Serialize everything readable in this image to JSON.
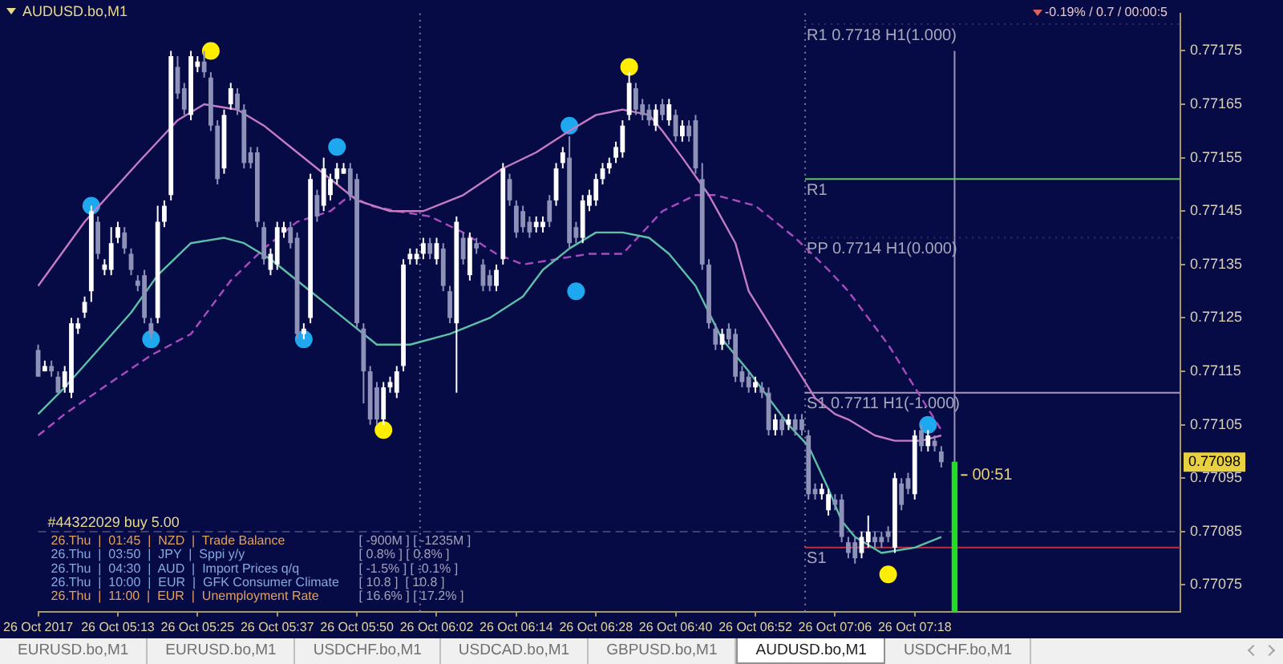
{
  "chart_data": {
    "type": "candlestick",
    "title": "AUDUSD.bo,M1",
    "subtitle": "-0.19% / 0.7 / 00:00:5",
    "categories": [
      "26 Oct 2017",
      null,
      null,
      null,
      null,
      null,
      null,
      null,
      null,
      null,
      null,
      null,
      "26 Oct 05:13",
      null,
      null,
      null,
      null,
      null,
      null,
      null,
      null,
      null,
      null,
      null,
      "26 Oct 05:25",
      null,
      null,
      null,
      null,
      null,
      null,
      null,
      null,
      null,
      null,
      null,
      "26 Oct 05:37",
      null,
      null,
      null,
      null,
      null,
      null,
      null,
      null,
      null,
      null,
      null,
      "26 Oct 05:50",
      null,
      null,
      null,
      null,
      null,
      null,
      null,
      null,
      null,
      null,
      null,
      "26 Oct 06:02",
      null,
      null,
      null,
      null,
      null,
      null,
      null,
      null,
      null,
      null,
      null,
      "26 Oct 06:14",
      null,
      null,
      null,
      null,
      null,
      null,
      null,
      null,
      null,
      null,
      null,
      "26 Oct 06:28",
      null,
      null,
      null,
      null,
      null,
      null,
      null,
      null,
      null,
      null,
      null,
      "26 Oct 06:40",
      null,
      null,
      null,
      null,
      null,
      null,
      null,
      null,
      null,
      null,
      null,
      "26 Oct 06:52",
      null,
      null,
      null,
      null,
      null,
      null,
      null,
      null,
      null,
      null,
      null,
      "26 Oct 07:06",
      null,
      null,
      null,
      null,
      null,
      null,
      null,
      null,
      null,
      null,
      null,
      "26 Oct 07:18",
      null,
      null,
      null,
      null,
      null,
      null,
      null,
      null,
      null,
      null,
      null,
      null,
      null,
      null,
      null,
      null,
      null,
      null,
      null,
      null,
      null,
      null,
      null,
      null,
      null,
      null,
      null,
      null,
      null,
      null,
      null,
      null,
      null,
      null,
      null,
      null,
      null,
      null,
      null,
      null
    ],
    "ohlc": [
      [
        0.77119,
        0.7712,
        0.77114,
        0.77114
      ],
      [
        0.77115,
        0.77117,
        0.77115,
        0.77116
      ],
      [
        0.77116,
        0.77117,
        0.77114,
        0.77115
      ],
      [
        0.77114,
        0.77115,
        0.77111,
        0.77111
      ],
      [
        0.77112,
        0.77116,
        0.77111,
        0.77115
      ],
      [
        0.77111,
        0.77125,
        0.7711,
        0.77124
      ],
      [
        0.77123,
        0.77125,
        0.77122,
        0.77124
      ],
      [
        0.77126,
        0.77129,
        0.77125,
        0.77128
      ],
      [
        0.7713,
        0.77146,
        0.77128,
        0.77145
      ],
      [
        0.77143,
        0.77144,
        0.77136,
        0.77137
      ],
      [
        0.77134,
        0.77136,
        0.77133,
        0.77135
      ],
      [
        0.77134,
        0.77142,
        0.77133,
        0.77139
      ],
      [
        0.7714,
        0.77143,
        0.77139,
        0.77142
      ],
      [
        0.77141,
        0.77142,
        0.77137,
        0.77138
      ],
      [
        0.77137,
        0.77138,
        0.77133,
        0.77134
      ],
      [
        0.77132,
        0.77133,
        0.7713,
        0.77131
      ],
      [
        0.77133,
        0.77134,
        0.77124,
        0.77125
      ],
      [
        0.77124,
        0.77125,
        0.77121,
        0.77122
      ],
      [
        0.77125,
        0.77146,
        0.77124,
        0.77143
      ],
      [
        0.77143,
        0.77147,
        0.77142,
        0.77146
      ],
      [
        0.77148,
        0.77175,
        0.77147,
        0.77174
      ],
      [
        0.77172,
        0.77174,
        0.77166,
        0.77167
      ],
      [
        0.77168,
        0.77169,
        0.77163,
        0.77164
      ],
      [
        0.77163,
        0.77175,
        0.77162,
        0.77174
      ],
      [
        0.77172,
        0.77174,
        0.77171,
        0.77173
      ],
      [
        0.77173,
        0.77175,
        0.7717,
        0.77171
      ],
      [
        0.7717,
        0.77171,
        0.7716,
        0.77161
      ],
      [
        0.77161,
        0.77162,
        0.7715,
        0.77151
      ],
      [
        0.77153,
        0.77164,
        0.77152,
        0.77163
      ],
      [
        0.77165,
        0.77169,
        0.77164,
        0.77168
      ],
      [
        0.77167,
        0.77168,
        0.77163,
        0.77164
      ],
      [
        0.77164,
        0.77165,
        0.77153,
        0.77154
      ],
      [
        0.77156,
        0.77157,
        0.77153,
        0.77154
      ],
      [
        0.77156,
        0.77157,
        0.77142,
        0.77143
      ],
      [
        0.77142,
        0.77143,
        0.77135,
        0.77136
      ],
      [
        0.77134,
        0.77138,
        0.77133,
        0.77137
      ],
      [
        0.77135,
        0.77143,
        0.77134,
        0.77142
      ],
      [
        0.77141,
        0.77143,
        0.7714,
        0.77142
      ],
      [
        0.77142,
        0.77143,
        0.77138,
        0.77139
      ],
      [
        0.7714,
        0.77141,
        0.77121,
        0.77122
      ],
      [
        0.77122,
        0.77124,
        0.77121,
        0.77123
      ],
      [
        0.77125,
        0.77152,
        0.77124,
        0.77151
      ],
      [
        0.77148,
        0.77149,
        0.77143,
        0.77144
      ],
      [
        0.77146,
        0.77155,
        0.77145,
        0.77153
      ],
      [
        0.77148,
        0.77152,
        0.77147,
        0.77151
      ],
      [
        0.77151,
        0.77154,
        0.7715,
        0.77153
      ],
      [
        0.77152,
        0.77154,
        0.77152,
        0.77153
      ],
      [
        0.77153,
        0.77154,
        0.77147,
        0.77148
      ],
      [
        0.77151,
        0.77152,
        0.77123,
        0.77124
      ],
      [
        0.77123,
        0.77124,
        0.77109,
        0.77115
      ],
      [
        0.77115,
        0.77116,
        0.77105,
        0.77106
      ],
      [
        0.77112,
        0.77113,
        0.77105,
        0.77106
      ],
      [
        0.77106,
        0.77113,
        0.77105,
        0.77112
      ],
      [
        0.77112,
        0.77114,
        0.77111,
        0.77113
      ],
      [
        0.77111,
        0.77116,
        0.7711,
        0.77115
      ],
      [
        0.77116,
        0.77136,
        0.77115,
        0.77135
      ],
      [
        0.77136,
        0.77138,
        0.77135,
        0.77137
      ],
      [
        0.77136,
        0.77138,
        0.77135,
        0.77137
      ],
      [
        0.77137,
        0.7714,
        0.77136,
        0.77139
      ],
      [
        0.77139,
        0.7714,
        0.77136,
        0.77137
      ],
      [
        0.77136,
        0.7714,
        0.77135,
        0.77139
      ],
      [
        0.77138,
        0.77139,
        0.7713,
        0.77131
      ],
      [
        0.7713,
        0.77131,
        0.77124,
        0.77125
      ],
      [
        0.77124,
        0.77144,
        0.77111,
        0.77143
      ],
      [
        0.7714,
        0.77141,
        0.77135,
        0.77136
      ],
      [
        0.77133,
        0.77141,
        0.77132,
        0.7714
      ],
      [
        0.77139,
        0.7714,
        0.77137,
        0.77138
      ],
      [
        0.77135,
        0.77136,
        0.7713,
        0.77131
      ],
      [
        0.77133,
        0.77134,
        0.7713,
        0.77131
      ],
      [
        0.77131,
        0.77135,
        0.7713,
        0.77134
      ],
      [
        0.77136,
        0.77154,
        0.77135,
        0.77153
      ],
      [
        0.77151,
        0.77152,
        0.77146,
        0.77147
      ],
      [
        0.77146,
        0.77147,
        0.7714,
        0.77141
      ],
      [
        0.77145,
        0.77146,
        0.77141,
        0.77142
      ],
      [
        0.77143,
        0.77144,
        0.7714,
        0.77141
      ],
      [
        0.77142,
        0.77144,
        0.77141,
        0.77143
      ],
      [
        0.77142,
        0.77144,
        0.77141,
        0.77143
      ],
      [
        0.77147,
        0.77148,
        0.77142,
        0.77143
      ],
      [
        0.77147,
        0.77154,
        0.77146,
        0.77153
      ],
      [
        0.77154,
        0.77157,
        0.77153,
        0.77156
      ],
      [
        0.77155,
        0.77159,
        0.77138,
        0.77139
      ],
      [
        0.77142,
        0.77143,
        0.77139,
        0.7714
      ],
      [
        0.7714,
        0.77148,
        0.77139,
        0.77147
      ],
      [
        0.77146,
        0.77149,
        0.77145,
        0.77148
      ],
      [
        0.77147,
        0.77152,
        0.77146,
        0.77151
      ],
      [
        0.77151,
        0.77154,
        0.7715,
        0.77153
      ],
      [
        0.77153,
        0.77155,
        0.77152,
        0.77154
      ],
      [
        0.77155,
        0.77158,
        0.77154,
        0.77157
      ],
      [
        0.77156,
        0.77162,
        0.77155,
        0.77161
      ],
      [
        0.77163,
        0.77171,
        0.77162,
        0.77169
      ],
      [
        0.77168,
        0.77169,
        0.77163,
        0.77164
      ],
      [
        0.77165,
        0.77166,
        0.77162,
        0.77163
      ],
      [
        0.77164,
        0.77165,
        0.77161,
        0.77162
      ],
      [
        0.77161,
        0.77165,
        0.7716,
        0.77164
      ],
      [
        0.77165,
        0.77166,
        0.77162,
        0.77163
      ],
      [
        0.77162,
        0.77166,
        0.77161,
        0.77165
      ],
      [
        0.77163,
        0.77164,
        0.77158,
        0.77159
      ],
      [
        0.77159,
        0.77162,
        0.77158,
        0.77161
      ],
      [
        0.77161,
        0.77162,
        0.77158,
        0.77159
      ],
      [
        0.77162,
        0.77163,
        0.77152,
        0.77153
      ],
      [
        0.77151,
        0.77154,
        0.77134,
        0.77135
      ],
      [
        0.77135,
        0.77136,
        0.77123,
        0.77124
      ],
      [
        0.77123,
        0.77124,
        0.77119,
        0.7712
      ],
      [
        0.7712,
        0.77123,
        0.77119,
        0.77122
      ],
      [
        0.77123,
        0.77124,
        0.7712,
        0.77121
      ],
      [
        0.77122,
        0.77123,
        0.77113,
        0.77114
      ],
      [
        0.77115,
        0.77116,
        0.77112,
        0.77113
      ],
      [
        0.77114,
        0.77115,
        0.77111,
        0.77112
      ],
      [
        0.77112,
        0.77114,
        0.77111,
        0.77113
      ],
      [
        0.77112,
        0.77113,
        0.7711,
        0.77111
      ],
      [
        0.77111,
        0.77112,
        0.77103,
        0.77104
      ],
      [
        0.77104,
        0.77107,
        0.77103,
        0.77106
      ],
      [
        0.77106,
        0.77107,
        0.77103,
        0.77104
      ],
      [
        0.77105,
        0.77107,
        0.77104,
        0.77106
      ],
      [
        0.77106,
        0.77107,
        0.77103,
        0.77104
      ],
      [
        0.77106,
        0.77107,
        0.77103,
        0.77104
      ],
      [
        0.77103,
        0.77104,
        0.77091,
        0.77092
      ],
      [
        0.77093,
        0.77094,
        0.77091,
        0.77092
      ],
      [
        0.77092,
        0.77094,
        0.77091,
        0.77093
      ],
      [
        0.77089,
        0.77093,
        0.77088,
        0.77092
      ],
      [
        0.77091,
        0.77092,
        0.77089,
        0.7709
      ],
      [
        0.77091,
        0.77092,
        0.77083,
        0.77084
      ],
      [
        0.77083,
        0.77084,
        0.7708,
        0.77081
      ],
      [
        0.77083,
        0.77084,
        0.77079,
        0.7708
      ],
      [
        0.77081,
        0.77085,
        0.7708,
        0.77084
      ],
      [
        0.77083,
        0.77088,
        0.77082,
        0.77085
      ],
      [
        0.77084,
        0.77085,
        0.77082,
        0.77083
      ],
      [
        0.77084,
        0.77085,
        0.77082,
        0.77083
      ],
      [
        0.77085,
        0.77086,
        0.77083,
        0.77084
      ],
      [
        0.77082,
        0.77096,
        0.77081,
        0.77095
      ],
      [
        0.77094,
        0.77095,
        0.77089,
        0.7709
      ],
      [
        0.77095,
        0.77096,
        0.77092,
        0.77093
      ],
      [
        0.77092,
        0.77104,
        0.77091,
        0.77103
      ],
      [
        0.77104,
        0.77105,
        0.771,
        0.77101
      ],
      [
        0.77101,
        0.77104,
        0.771,
        0.77103
      ],
      [
        0.77102,
        0.77103,
        0.771,
        0.77101
      ],
      [
        0.771,
        0.77101,
        0.77097,
        0.77098
      ],
      null,
      null,
      null,
      null,
      null,
      null,
      null,
      null,
      null,
      null,
      null,
      null,
      null,
      null,
      null,
      null,
      null,
      null,
      null,
      null,
      null,
      null,
      null,
      null,
      null,
      null,
      null,
      null,
      null,
      null,
      null,
      null,
      null,
      null,
      null,
      null
    ],
    "colors": [
      "#8e92b8",
      "#ffffff",
      "#8e92b8",
      "#8e92b8",
      "#ffffff",
      "#ffffff",
      "#ffffff",
      "#ffffff",
      "#ffffff",
      "#8e92b8",
      "#ffffff",
      "#ffffff",
      "#ffffff",
      "#8e92b8",
      "#8e92b8",
      "#8e92b8",
      "#8e92b8",
      "#8e92b8",
      "#ffffff",
      "#ffffff",
      "#ffffff",
      "#8e92b8",
      "#8e92b8",
      "#ffffff",
      "#ffffff",
      "#8e92b8",
      "#8e92b8",
      "#8e92b8",
      "#ffffff",
      "#ffffff",
      "#8e92b8",
      "#8e92b8",
      "#8e92b8",
      "#8e92b8",
      "#8e92b8",
      "#ffffff",
      "#ffffff",
      "#ffffff",
      "#8e92b8",
      "#8e92b8",
      "#ffffff",
      "#ffffff",
      "#8e92b8",
      "#ffffff",
      "#ffffff",
      "#ffffff",
      "#ffffff",
      "#8e92b8",
      "#8e92b8",
      "#8e92b8",
      "#8e92b8",
      "#8e92b8",
      "#ffffff",
      "#ffffff",
      "#ffffff",
      "#ffffff",
      "#ffffff",
      "#ffffff",
      "#ffffff",
      "#8e92b8",
      "#ffffff",
      "#8e92b8",
      "#8e92b8",
      "#ffffff",
      "#8e92b8",
      "#ffffff",
      "#8e92b8",
      "#8e92b8",
      "#8e92b8",
      "#ffffff",
      "#ffffff",
      "#8e92b8",
      "#8e92b8",
      "#8e92b8",
      "#8e92b8",
      "#ffffff",
      "#ffffff",
      "#8e92b8",
      "#ffffff",
      "#ffffff",
      "#8e92b8",
      "#8e92b8",
      "#ffffff",
      "#ffffff",
      "#ffffff",
      "#ffffff",
      "#ffffff",
      "#ffffff",
      "#ffffff",
      "#ffffff",
      "#8e92b8",
      "#8e92b8",
      "#8e92b8",
      "#ffffff",
      "#8e92b8",
      "#ffffff",
      "#8e92b8",
      "#ffffff",
      "#8e92b8",
      "#8e92b8",
      "#8e92b8",
      "#8e92b8",
      "#8e92b8",
      "#ffffff",
      "#8e92b8",
      "#8e92b8",
      "#8e92b8",
      "#8e92b8",
      "#ffffff",
      "#8e92b8",
      "#8e92b8",
      "#ffffff",
      "#8e92b8",
      "#ffffff",
      "#8e92b8",
      "#8e92b8",
      "#8e92b8",
      "#8e92b8",
      "#ffffff",
      "#ffffff",
      "#8e92b8",
      "#8e92b8",
      "#8e92b8",
      "#8e92b8",
      "#ffffff",
      "#ffffff",
      "#8e92b8",
      "#8e92b8",
      "#8e92b8",
      "#ffffff",
      "#8e92b8",
      "#8e92b8",
      "#ffffff",
      "#8e92b8",
      "#ffffff",
      "#8e92b8",
      "#8e92b8",
      null,
      null,
      null,
      null,
      null,
      null,
      null,
      null,
      null,
      null,
      null,
      null,
      null,
      null,
      null,
      null,
      null,
      null,
      null,
      null,
      null,
      null,
      null,
      null,
      null,
      null,
      null,
      null,
      null,
      null,
      null,
      null,
      null,
      null,
      null,
      null
    ],
    "series": [
      {
        "type": "line",
        "color": "#c47cc4",
        "line_style": "solid",
        "values": [
          0.77131,
          null,
          null,
          null,
          null,
          null,
          null,
          0.77143,
          null,
          null,
          null,
          null,
          null,
          null,
          null,
          0.77154,
          null,
          null,
          null,
          null,
          null,
          0.77162,
          null,
          null,
          null,
          0.77165,
          null,
          null,
          null,
          null,
          0.77164,
          null,
          null,
          null,
          0.77161,
          null,
          null,
          null,
          null,
          0.77156,
          null,
          null,
          null,
          null,
          0.77151,
          null,
          null,
          null,
          0.77147,
          null,
          null,
          null,
          null,
          0.77145,
          null,
          null,
          null,
          null,
          0.77145,
          null,
          null,
          null,
          null,
          null,
          0.77148,
          null,
          null,
          null,
          null,
          null,
          0.77153,
          null,
          null,
          null,
          null,
          0.77156,
          null,
          null,
          null,
          null,
          0.7716,
          null,
          null,
          null,
          0.77163,
          null,
          null,
          null,
          0.77164,
          null,
          null,
          null,
          0.77163,
          null,
          0.7716,
          null,
          null,
          0.77155,
          null,
          null,
          null,
          0.77148,
          null,
          null,
          null,
          0.77139,
          null,
          0.7713,
          null,
          null,
          null,
          0.77122,
          null,
          null,
          0.77116,
          null,
          null,
          0.7711,
          null,
          null,
          0.77107,
          null,
          0.77106,
          null,
          null,
          null,
          0.77103,
          null,
          null,
          0.77102,
          null,
          null,
          null,
          0.77102,
          null,
          null,
          0.77103,
          null,
          null,
          null,
          null,
          null,
          null,
          null,
          null,
          null,
          null,
          null,
          null,
          null,
          null,
          null,
          null,
          null,
          null,
          null,
          null,
          null,
          null,
          null,
          null,
          null,
          null,
          null,
          null,
          null,
          null,
          null,
          null,
          null,
          null,
          null,
          null
        ]
      },
      {
        "type": "line",
        "color": "#5fc0a8",
        "line_style": "solid",
        "values": [
          0.77107,
          null,
          null,
          null,
          0.77112,
          null,
          null,
          null,
          null,
          0.77119,
          null,
          null,
          null,
          null,
          0.77126,
          null,
          null,
          null,
          0.77133,
          null,
          null,
          null,
          null,
          0.77139,
          null,
          null,
          null,
          null,
          0.7714,
          null,
          null,
          0.77139,
          null,
          null,
          null,
          0.77136,
          null,
          null,
          null,
          null,
          0.77131,
          null,
          null,
          null,
          0.77127,
          null,
          null,
          0.77124,
          null,
          null,
          null,
          0.7712,
          null,
          null,
          null,
          null,
          0.7712,
          null,
          null,
          null,
          null,
          null,
          0.77122,
          null,
          null,
          null,
          null,
          null,
          0.77125,
          null,
          null,
          null,
          null,
          0.77129,
          null,
          null,
          0.77134,
          null,
          null,
          null,
          0.77138,
          null,
          null,
          null,
          0.77141,
          null,
          null,
          null,
          0.77141,
          null,
          null,
          null,
          0.7714,
          null,
          null,
          0.77137,
          null,
          null,
          null,
          0.77131,
          null,
          null,
          null,
          0.77121,
          null,
          null,
          null,
          0.77115,
          null,
          null,
          0.7711,
          null,
          null,
          0.77105,
          null,
          null,
          0.77101,
          null,
          null,
          0.77093,
          null,
          0.77087,
          null,
          0.77084,
          null,
          null,
          null,
          0.77081,
          null,
          null,
          null,
          null,
          0.77082,
          null,
          null,
          null,
          0.77084,
          null,
          null,
          null,
          null,
          null,
          null,
          null,
          null,
          null,
          null,
          null,
          null,
          null,
          null,
          null,
          null,
          null,
          null,
          null,
          null,
          null,
          null,
          null,
          null,
          null,
          null,
          null,
          null,
          null,
          null,
          null,
          null,
          null,
          null,
          null,
          null
        ]
      },
      {
        "type": "line",
        "color": "#a84cc0",
        "line_style": "dashed",
        "values": [
          0.77103,
          null,
          null,
          null,
          0.77107,
          null,
          null,
          null,
          null,
          null,
          null,
          0.77113,
          null,
          null,
          null,
          null,
          null,
          0.77118,
          null,
          null,
          null,
          null,
          null,
          0.77122,
          null,
          null,
          null,
          null,
          null,
          0.77132,
          null,
          null,
          null,
          null,
          0.77138,
          null,
          null,
          null,
          null,
          0.77143,
          null,
          null,
          null,
          null,
          0.77145,
          null,
          null,
          0.77148,
          null,
          null,
          0.77146,
          null,
          null,
          null,
          0.77145,
          null,
          null,
          null,
          null,
          0.77144,
          null,
          null,
          null,
          null,
          0.77141,
          null,
          null,
          null,
          null,
          0.77137,
          null,
          null,
          null,
          0.77135,
          null,
          null,
          null,
          null,
          0.77136,
          null,
          null,
          null,
          null,
          0.77137,
          null,
          null,
          null,
          null,
          0.77137,
          null,
          null,
          0.77141,
          null,
          null,
          0.77145,
          null,
          null,
          null,
          null,
          0.77148,
          null,
          null,
          0.77148,
          null,
          null,
          null,
          null,
          null,
          0.77146,
          null,
          null,
          null,
          null,
          null,
          0.7714,
          null,
          null,
          null,
          null,
          0.77134,
          null,
          null,
          0.7713,
          null,
          null,
          null,
          null,
          null,
          0.7712,
          null,
          null,
          null,
          null,
          0.7711,
          null,
          null,
          0.77104,
          null,
          null,
          null,
          null,
          null,
          null,
          null,
          null,
          null,
          null,
          null,
          null,
          null,
          null,
          null,
          null,
          null,
          null,
          null,
          null,
          null,
          null,
          null,
          null,
          null,
          null,
          null,
          null,
          null,
          null,
          null,
          null,
          null,
          null,
          null,
          null
        ]
      },
      {
        "type": "bar",
        "color": "#22dd22",
        "values": [
          null,
          null,
          null,
          null,
          null,
          null,
          null,
          null,
          null,
          null,
          null,
          null,
          null,
          null,
          null,
          null,
          null,
          null,
          null,
          null,
          null,
          null,
          null,
          null,
          null,
          null,
          null,
          null,
          null,
          null,
          null,
          null,
          null,
          null,
          null,
          null,
          null,
          null,
          null,
          null,
          null,
          null,
          null,
          null,
          null,
          null,
          null,
          null,
          null,
          null,
          null,
          null,
          null,
          null,
          null,
          null,
          null,
          null,
          null,
          null,
          null,
          null,
          null,
          null,
          null,
          null,
          null,
          null,
          null,
          null,
          null,
          null,
          null,
          null,
          null,
          null,
          null,
          null,
          null,
          null,
          null,
          null,
          null,
          null,
          null,
          null,
          null,
          null,
          null,
          null,
          null,
          null,
          null,
          null,
          null,
          null,
          null,
          null,
          null,
          null,
          null,
          null,
          null,
          null,
          null,
          null,
          null,
          null,
          null,
          null,
          null,
          null,
          null,
          null,
          null,
          null,
          null,
          null,
          null,
          null,
          null,
          null,
          null,
          null,
          null,
          null,
          null,
          null,
          null,
          null,
          null,
          null,
          null,
          null,
          null,
          null,
          null,
          null,
          0.77098,
          null,
          null,
          null,
          null,
          null,
          null,
          null,
          null,
          null,
          null,
          null,
          null,
          null,
          null,
          null,
          null,
          null,
          null,
          null,
          null,
          null,
          null,
          null,
          null,
          null,
          null,
          null,
          null,
          null,
          null,
          null,
          null,
          null,
          null
        ]
      },
      {
        "type": "scatter",
        "color": "#ffee00",
        "marker": "circle",
        "values": [
          null,
          null,
          null,
          null,
          null,
          null,
          null,
          null,
          null,
          null,
          null,
          null,
          null,
          null,
          null,
          null,
          null,
          null,
          null,
          null,
          null,
          null,
          null,
          null,
          null,
          null,
          0.77175,
          null,
          null,
          null,
          null,
          null,
          null,
          null,
          null,
          null,
          null,
          null,
          null,
          null,
          null,
          null,
          null,
          null,
          null,
          null,
          null,
          null,
          null,
          null,
          null,
          null,
          0.77104,
          null,
          null,
          null,
          null,
          null,
          null,
          null,
          null,
          null,
          null,
          null,
          null,
          null,
          null,
          null,
          null,
          null,
          null,
          null,
          null,
          null,
          null,
          null,
          null,
          null,
          null,
          null,
          null,
          null,
          null,
          null,
          null,
          null,
          null,
          null,
          null,
          0.77172,
          null,
          null,
          null,
          null,
          null,
          null,
          null,
          null,
          null,
          null,
          null,
          null,
          null,
          null,
          null,
          null,
          null,
          null,
          null,
          null,
          null,
          null,
          null,
          null,
          null,
          null,
          null,
          null,
          null,
          null,
          null,
          null,
          null,
          null,
          null,
          null,
          null,
          null,
          0.77077,
          null,
          null,
          null,
          null,
          null,
          null,
          null,
          null,
          null,
          null,
          null,
          null,
          null,
          null,
          null,
          null,
          null,
          null,
          null,
          null,
          null,
          null,
          null,
          null,
          null,
          null,
          null,
          null,
          null,
          null,
          null,
          null,
          null,
          null,
          null,
          null,
          null,
          null,
          null,
          null,
          null,
          null,
          null,
          null
        ]
      },
      {
        "type": "scatter",
        "color": "#1ea8f0",
        "marker": "circle",
        "values": [
          null,
          null,
          null,
          null,
          null,
          null,
          null,
          null,
          0.77146,
          null,
          null,
          null,
          null,
          null,
          null,
          null,
          null,
          0.77121,
          null,
          null,
          null,
          null,
          null,
          null,
          null,
          null,
          null,
          null,
          null,
          null,
          null,
          null,
          null,
          null,
          null,
          null,
          null,
          null,
          null,
          null,
          0.77121,
          null,
          null,
          null,
          null,
          0.77157,
          null,
          null,
          null,
          null,
          null,
          null,
          null,
          null,
          null,
          null,
          null,
          null,
          null,
          null,
          null,
          null,
          null,
          null,
          null,
          null,
          null,
          null,
          null,
          null,
          null,
          null,
          null,
          null,
          null,
          null,
          null,
          null,
          null,
          null,
          0.77161,
          0.7713,
          null,
          null,
          null,
          null,
          null,
          null,
          null,
          null,
          null,
          null,
          null,
          null,
          null,
          null,
          null,
          null,
          null,
          null,
          null,
          null,
          null,
          null,
          null,
          null,
          null,
          null,
          null,
          null,
          null,
          null,
          null,
          null,
          null,
          null,
          null,
          null,
          null,
          null,
          null,
          null,
          null,
          null,
          null,
          null,
          null,
          null,
          null,
          null,
          null,
          null,
          null,
          null,
          0.77105,
          null,
          null,
          null,
          null,
          null,
          null,
          null,
          null,
          null,
          null,
          null,
          null,
          null,
          null,
          null,
          null,
          null,
          null,
          null,
          null,
          null,
          null,
          null,
          null,
          null,
          null,
          null,
          null,
          null,
          null,
          null,
          null,
          null,
          null,
          null,
          null,
          null,
          null
        ]
      }
    ],
    "ylim": [
      0.7707,
      0.77182
    ],
    "yticks": [
      0.77075,
      0.77085,
      0.77095,
      0.77105,
      0.77115,
      0.77125,
      0.77135,
      0.77145,
      0.77155,
      0.77165,
      0.77175
    ],
    "ref_lines": [
      {
        "axis": "y",
        "value": 0.7718,
        "label": "R1 0.7718 H1(1.000)",
        "color": "#2a2e68",
        "line_style": "dotted"
      },
      {
        "axis": "y",
        "value": 0.77151,
        "label": "R1",
        "color": "#5cc85c",
        "line_style": "solid"
      },
      {
        "axis": "y",
        "value": 0.7714,
        "label": "PP 0.7714 H1(0.000)",
        "color": "#2a2e68",
        "line_style": "dotted"
      },
      {
        "axis": "y",
        "value": 0.77111,
        "label": "S1 0.7711 H1(-1.000)",
        "color": "#a898b8",
        "line_style": "solid"
      },
      {
        "axis": "y",
        "value": 0.77082,
        "label": "S1",
        "color": "#c0303c",
        "line_style": "solid"
      },
      {
        "axis": "y",
        "value": 0.77085,
        "label": "#44322029 buy 5.00",
        "color": "#404070",
        "line_style": "dashed"
      }
    ],
    "annotations": [
      {
        "text": "0.77098",
        "y": 0.77098
      },
      "00:51",
      "26.Thu  |  01:45  |  NZD  |  Trade Balance",
      "[ -900M ] [ -1235M ]",
      "26.Thu  |  03:50  |  JPY  |  Sppi y/y",
      "[ 0.8% ] [ 0.8% ]",
      "26.Thu  |  04:30  |  AUD  |  Import Prices q/q",
      "[ -1.5% ] [ -0.1% ]",
      "26.Thu  |  10:00  |  EUR  |  GFK Consumer Climate",
      "[ 10.8 ]  [ 10.8 ]",
      "26.Thu  |  11:00  |  EUR  |  Unemployment Rate",
      "[ 16.6% ] [ 17.2% ]",
      "EURUSD.bo,M1",
      "EURUSD.bo,M1",
      "USDCHF.bo,M1",
      "USDCAD.bo,M1",
      "GBPUSD.bo,M1",
      "AUDUSD.bo,M1",
      "USDCHF.bo,M1"
    ]
  }
}
